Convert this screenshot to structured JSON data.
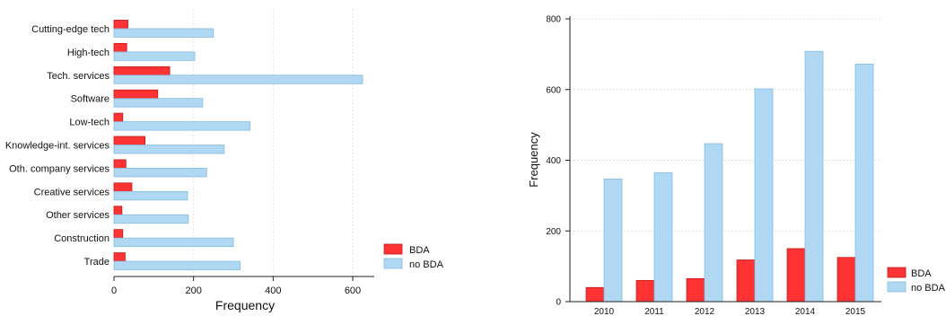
{
  "colors": {
    "bda": "#ff3333",
    "bda_stroke": "#c41818",
    "no_bda": "#b0d8f2",
    "no_bda_stroke": "#86bde0",
    "grid": "#d9d9d9",
    "axis": "#222222"
  },
  "chart_data": [
    {
      "type": "bar",
      "orientation": "horizontal",
      "categories": [
        "Cutting-edge tech",
        "High-tech",
        "Tech. services",
        "Software",
        "Low-tech",
        "Knowledge-int. services",
        "Oth. company services",
        "Creative services",
        "Other services",
        "Construction",
        "Trade"
      ],
      "series": [
        {
          "name": "BDA",
          "values": [
            35,
            32,
            140,
            110,
            22,
            78,
            30,
            45,
            20,
            22,
            28
          ]
        },
        {
          "name": "no BDA",
          "values": [
            250,
            203,
            625,
            223,
            342,
            277,
            233,
            185,
            187,
            300,
            317
          ]
        }
      ],
      "xlabel": "Frequency",
      "xlim": [
        0,
        600
      ],
      "xticks": [
        0,
        200,
        400,
        600
      ],
      "grid": "vertical-dotted",
      "legend_position": "right"
    },
    {
      "type": "bar",
      "orientation": "vertical",
      "categories": [
        "2010",
        "2011",
        "2012",
        "2013",
        "2014",
        "2015"
      ],
      "series": [
        {
          "name": "BDA",
          "values": [
            40,
            60,
            65,
            118,
            150,
            125
          ]
        },
        {
          "name": "no BDA",
          "values": [
            347,
            365,
            447,
            602,
            708,
            672
          ]
        }
      ],
      "ylabel": "Frequency",
      "ylim": [
        0,
        800
      ],
      "yticks": [
        0,
        200,
        400,
        600,
        800
      ],
      "grid": "horizontal-dotted",
      "legend_position": "right"
    }
  ]
}
